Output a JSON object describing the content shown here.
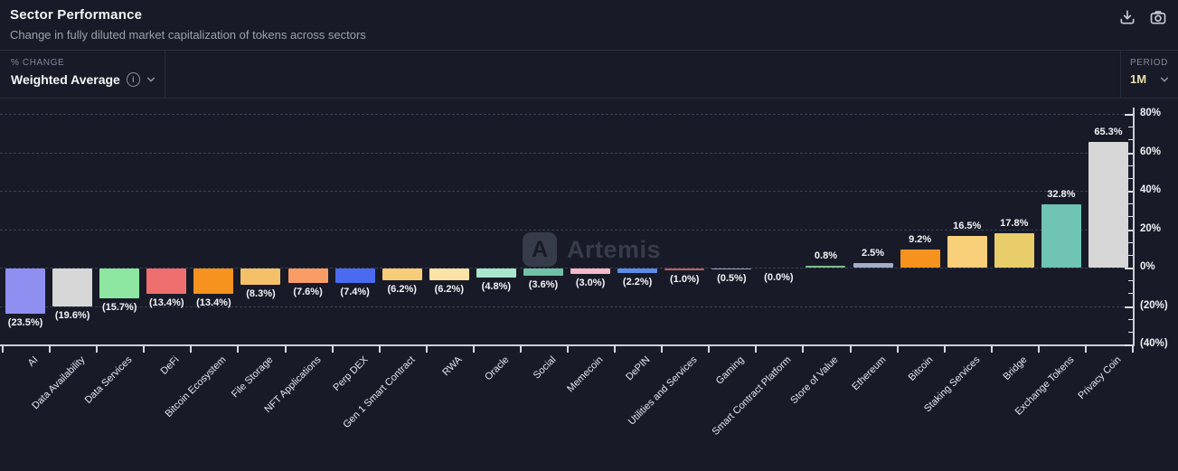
{
  "header": {
    "title": "Sector Performance",
    "subtitle": "Change in fully diluted market capitalization of tokens across sectors",
    "icons": [
      "download-icon",
      "camera-icon"
    ]
  },
  "controls": {
    "metric_label": "% CHANGE",
    "metric_value": "Weighted Average",
    "metric_info_icon": "info-icon",
    "period_label": "PERIOD",
    "period_value": "1M"
  },
  "watermark": {
    "logo_glyph": "A",
    "text": "Artemis"
  },
  "chart_data": {
    "type": "bar",
    "title": "Sector Performance",
    "xlabel": "",
    "ylabel": "% change",
    "ylim": [
      -40,
      80
    ],
    "grid": "dashed horizontal, axis on right",
    "legend": "none",
    "y_ticks": [
      {
        "value": 80,
        "label": "80%"
      },
      {
        "value": 60,
        "label": "60%"
      },
      {
        "value": 40,
        "label": "40%"
      },
      {
        "value": 20,
        "label": "20%"
      },
      {
        "value": 0,
        "label": "0%"
      },
      {
        "value": -20,
        "label": "(20%)"
      },
      {
        "value": -40,
        "label": "(40%)"
      }
    ],
    "categories": [
      "AI",
      "Data Availability",
      "Data Services",
      "DeFi",
      "Bitcoin Ecosystem",
      "File Storage",
      "NFT Applications",
      "Perp DEX",
      "Gen 1 Smart Contract",
      "RWA",
      "Oracle",
      "Social",
      "Memecoin",
      "DePIN",
      "Utilities and Services",
      "Gaming",
      "Smart Contract Platform",
      "Store of Value",
      "Ethereum",
      "Bitcoin",
      "Staking Services",
      "Bridge",
      "Exchange Tokens",
      "Privacy Coin"
    ],
    "values": [
      -23.5,
      -19.6,
      -15.7,
      -13.4,
      -13.4,
      -8.3,
      -7.6,
      -7.4,
      -6.2,
      -6.2,
      -4.8,
      -3.6,
      -3.0,
      -2.2,
      -1.0,
      -0.5,
      0.0,
      0.8,
      2.5,
      9.2,
      16.5,
      17.8,
      32.8,
      65.3
    ],
    "labels": [
      "(23.5%)",
      "(19.6%)",
      "(15.7%)",
      "(13.4%)",
      "(13.4%)",
      "(8.3%)",
      "(7.6%)",
      "(7.4%)",
      "(6.2%)",
      "(6.2%)",
      "(4.8%)",
      "(3.6%)",
      "(3.0%)",
      "(2.2%)",
      "(1.0%)",
      "(0.5%)",
      "(0.0%)",
      "0.8%",
      "2.5%",
      "9.2%",
      "16.5%",
      "17.8%",
      "32.8%",
      "65.3%"
    ],
    "colors": [
      "#8f8ff2",
      "#d7d7d7",
      "#8ce6a0",
      "#ee6f6d",
      "#f6921e",
      "#f5c168",
      "#f89c66",
      "#4a6af0",
      "#f8cd7a",
      "#fbe3a8",
      "#a8e7cc",
      "#70c0a7",
      "#f5b9c9",
      "#5a8ce8",
      "#c05f5c",
      "#9aa3b8",
      "#9aa3b8",
      "#7fbe8a",
      "#a4adc9",
      "#f6921e",
      "#f9cf79",
      "#e9cd6a",
      "#6fc4b4",
      "#d7d7d7"
    ]
  }
}
